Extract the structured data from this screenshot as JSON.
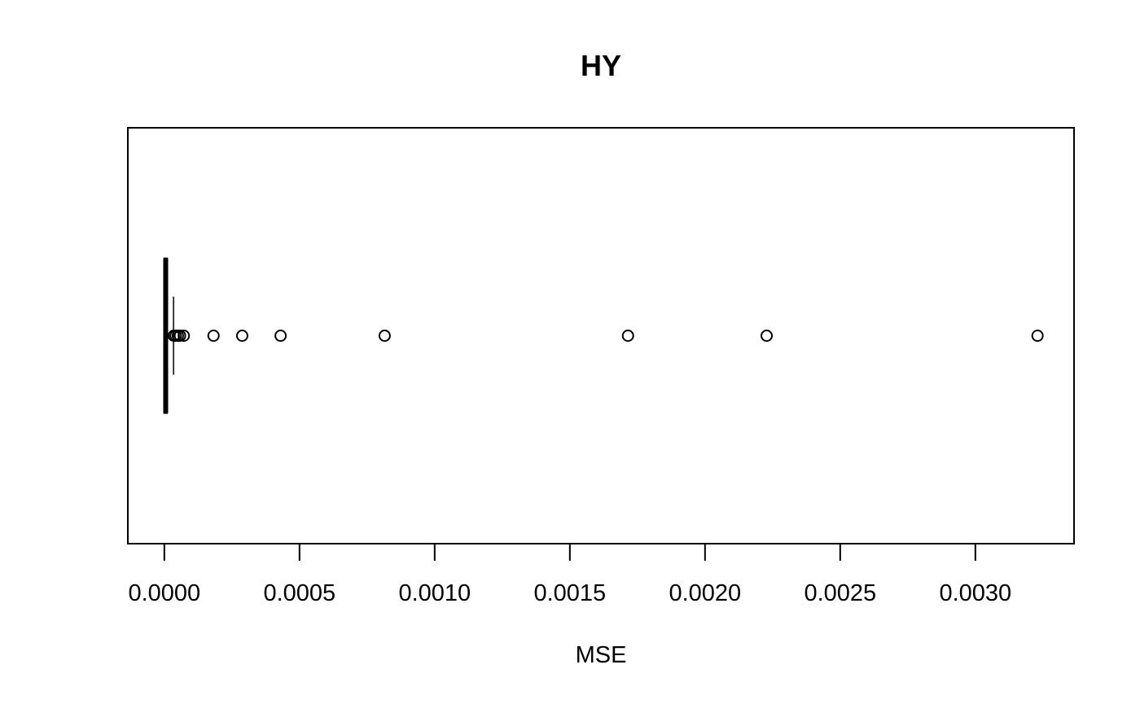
{
  "chart_data": {
    "type": "boxplot",
    "orientation": "horizontal",
    "title": "HY",
    "xlabel": "MSE",
    "ylabel": "",
    "xlim": [
      -0.000135,
      0.003365
    ],
    "ticks": [
      0.0,
      0.0005,
      0.001,
      0.0015,
      0.002,
      0.0025,
      0.003
    ],
    "tick_labels": [
      "0.0000",
      "0.0005",
      "0.0010",
      "0.0015",
      "0.0020",
      "0.0025",
      "0.0030"
    ],
    "box": {
      "whisker_low": 0.0,
      "q1": 0.0,
      "median": 5e-06,
      "q3": 1e-05,
      "whisker_high": 3.4e-05
    },
    "outliers": [
      3.5e-05,
      4.2e-05,
      5e-05,
      5.8e-05,
      7.2e-05,
      0.000182,
      0.000288,
      0.00043,
      0.000815,
      0.001715,
      0.002228,
      0.00323
    ],
    "grid": false,
    "legend": "none"
  }
}
